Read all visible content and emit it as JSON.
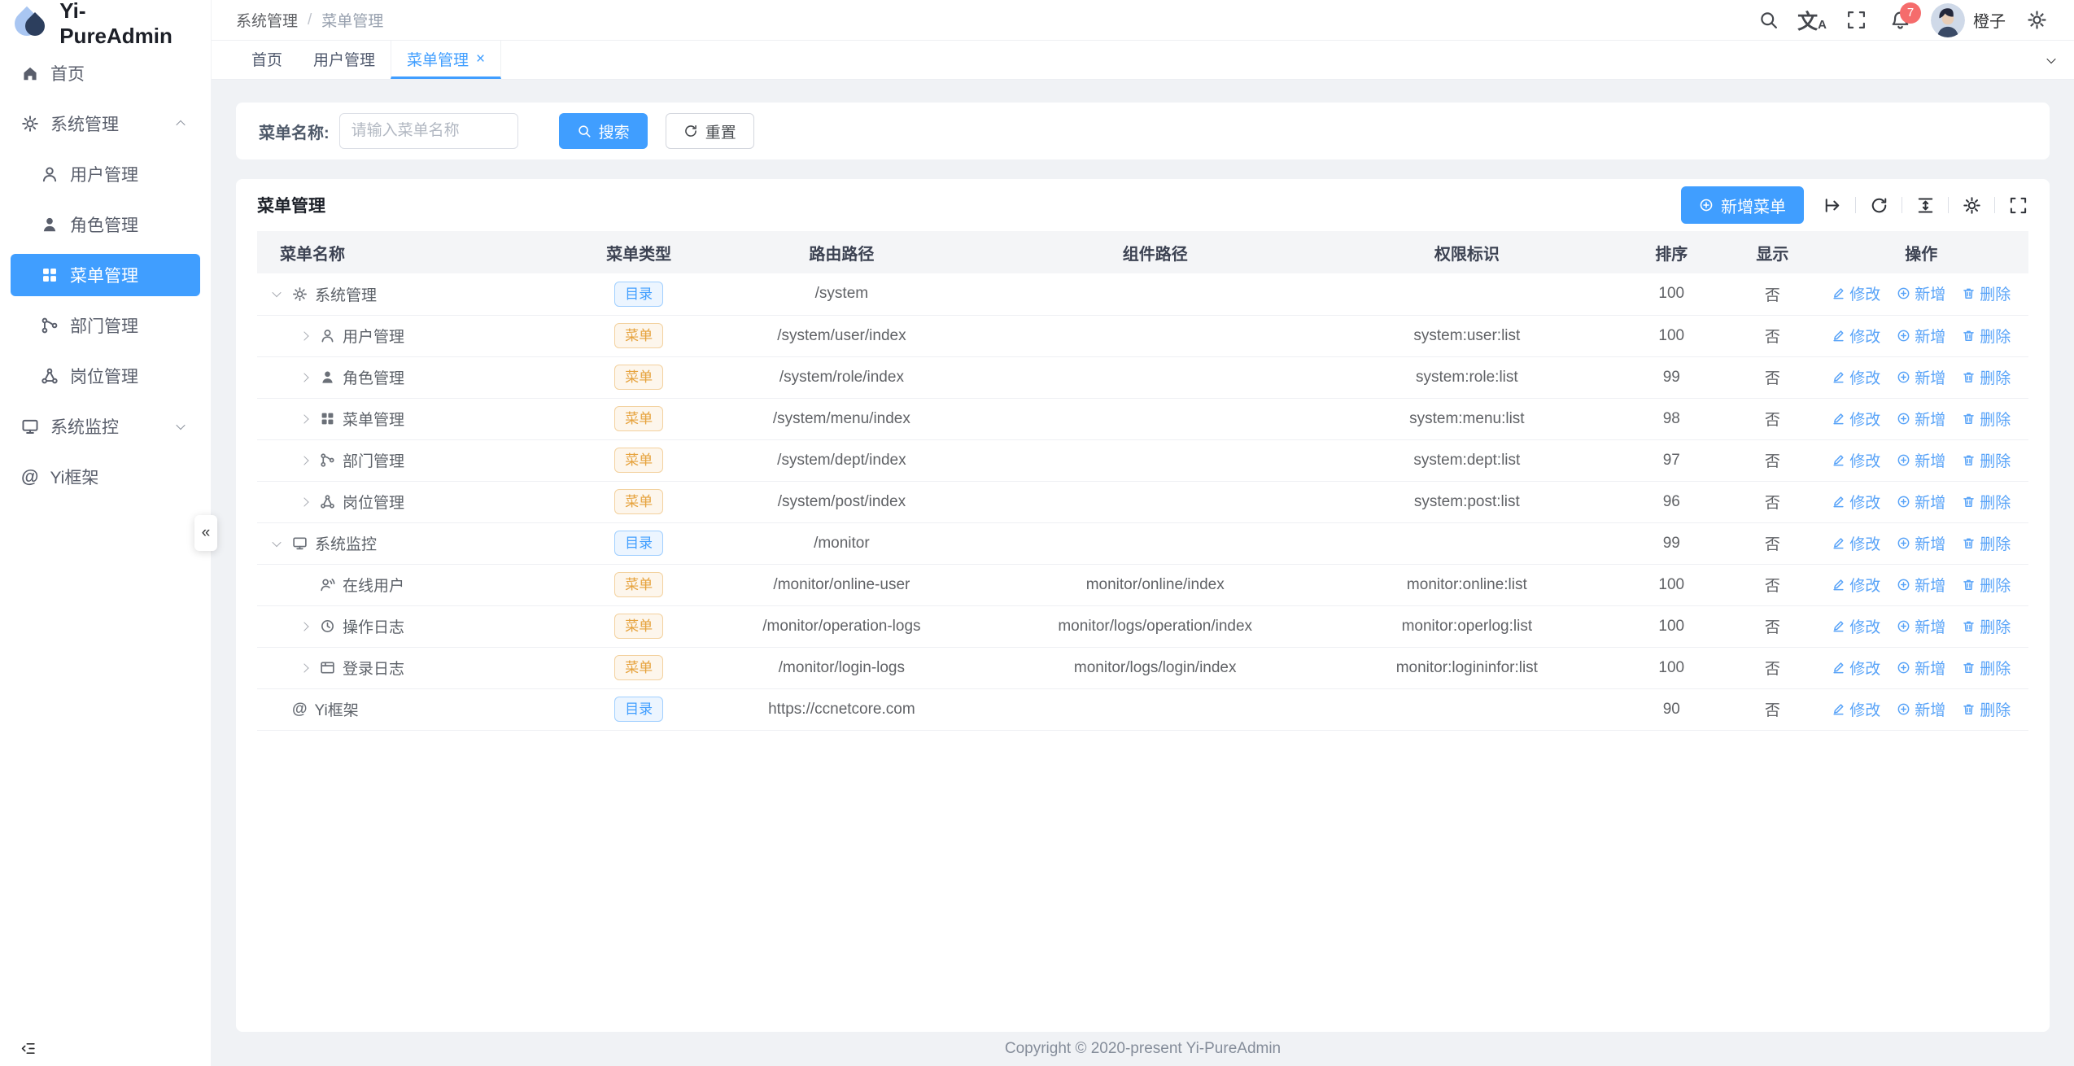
{
  "app": {
    "name": "Yi-PureAdmin"
  },
  "header": {
    "breadcrumb": [
      "系统管理",
      "菜单管理"
    ],
    "separator": "/",
    "user_name": "橙子",
    "badge_count": "7",
    "icons": [
      "search-icon",
      "translate-icon",
      "fullscreen-icon",
      "bell-icon",
      "gear-icon"
    ]
  },
  "tabs": [
    {
      "key": "home",
      "label": "首页",
      "active": false,
      "closable": false
    },
    {
      "key": "user-management",
      "label": "用户管理",
      "active": false,
      "closable": false
    },
    {
      "key": "menu-management",
      "label": "菜单管理",
      "active": true,
      "closable": true
    }
  ],
  "sidebar": {
    "items": [
      {
        "key": "home",
        "label": "首页",
        "icon": "home-icon",
        "level": 0,
        "chevron": null,
        "active": false
      },
      {
        "key": "system",
        "label": "系统管理",
        "icon": "gear-icon",
        "level": 0,
        "chevron": "up",
        "active": false
      },
      {
        "key": "user",
        "label": "用户管理",
        "icon": "user-icon",
        "level": 1,
        "chevron": null,
        "active": false
      },
      {
        "key": "role",
        "label": "角色管理",
        "icon": "role-icon",
        "level": 1,
        "chevron": null,
        "active": false
      },
      {
        "key": "menu",
        "label": "菜单管理",
        "icon": "grid-icon",
        "level": 1,
        "chevron": null,
        "active": true
      },
      {
        "key": "dept",
        "label": "部门管理",
        "icon": "tree-icon",
        "level": 1,
        "chevron": null,
        "active": false
      },
      {
        "key": "post",
        "label": "岗位管理",
        "icon": "share-icon",
        "level": 1,
        "chevron": null,
        "active": false
      },
      {
        "key": "monitor",
        "label": "系统监控",
        "icon": "monitor-icon",
        "level": 0,
        "chevron": "down",
        "active": false
      },
      {
        "key": "yi-frame",
        "label": "Yi框架",
        "icon": "at-icon",
        "level": 0,
        "chevron": null,
        "active": false
      }
    ],
    "collapse_glyph": "«"
  },
  "search": {
    "label": "菜单名称:",
    "placeholder": "请输入菜单名称",
    "search_label": "搜索",
    "reset_label": "重置"
  },
  "table_card": {
    "title": "菜单管理",
    "add_button": "新增菜单",
    "toolbar_icons": [
      "export-icon",
      "refresh-icon",
      "density-icon",
      "gear-icon",
      "fullscreen-icon"
    ],
    "columns": [
      "菜单名称",
      "菜单类型",
      "路由路径",
      "组件路径",
      "权限标识",
      "排序",
      "显示",
      "操作"
    ],
    "actions": [
      {
        "key": "edit",
        "label": "修改",
        "icon": "edit-icon"
      },
      {
        "key": "add",
        "label": "新增",
        "icon": "plus-circle-icon"
      },
      {
        "key": "delete",
        "label": "删除",
        "icon": "trash-icon"
      }
    ],
    "rows": [
      {
        "key": "system",
        "name": "系统管理",
        "icon": "gear-icon",
        "arrow": "down",
        "level": 0,
        "type": "目录",
        "route": "/system",
        "component": "",
        "perms": "",
        "sort": "100",
        "visible": "否"
      },
      {
        "key": "user",
        "name": "用户管理",
        "icon": "user-icon",
        "arrow": "right",
        "level": 1,
        "type": "菜单",
        "route": "/system/user/index",
        "component": "",
        "perms": "system:user:list",
        "sort": "100",
        "visible": "否"
      },
      {
        "key": "role",
        "name": "角色管理",
        "icon": "role-icon",
        "arrow": "right",
        "level": 1,
        "type": "菜单",
        "route": "/system/role/index",
        "component": "",
        "perms": "system:role:list",
        "sort": "99",
        "visible": "否"
      },
      {
        "key": "menu",
        "name": "菜单管理",
        "icon": "grid-icon",
        "arrow": "right",
        "level": 1,
        "type": "菜单",
        "route": "/system/menu/index",
        "component": "",
        "perms": "system:menu:list",
        "sort": "98",
        "visible": "否"
      },
      {
        "key": "dept",
        "name": "部门管理",
        "icon": "tree-icon",
        "arrow": "right",
        "level": 1,
        "type": "菜单",
        "route": "/system/dept/index",
        "component": "",
        "perms": "system:dept:list",
        "sort": "97",
        "visible": "否"
      },
      {
        "key": "post",
        "name": "岗位管理",
        "icon": "share-icon",
        "arrow": "right",
        "level": 1,
        "type": "菜单",
        "route": "/system/post/index",
        "component": "",
        "perms": "system:post:list",
        "sort": "96",
        "visible": "否"
      },
      {
        "key": "monitor",
        "name": "系统监控",
        "icon": "monitor-icon",
        "arrow": "down",
        "level": 0,
        "type": "目录",
        "route": "/monitor",
        "component": "",
        "perms": "",
        "sort": "99",
        "visible": "否"
      },
      {
        "key": "online-user",
        "name": "在线用户",
        "icon": "online-user-icon",
        "arrow": "none",
        "level": 1,
        "type": "菜单",
        "route": "/monitor/online-user",
        "component": "monitor/online/index",
        "perms": "monitor:online:list",
        "sort": "100",
        "visible": "否"
      },
      {
        "key": "operation-log",
        "name": "操作日志",
        "icon": "clock-icon",
        "arrow": "right",
        "level": 1,
        "type": "菜单",
        "route": "/monitor/operation-logs",
        "component": "monitor/logs/operation/index",
        "perms": "monitor:operlog:list",
        "sort": "100",
        "visible": "否"
      },
      {
        "key": "login-log",
        "name": "登录日志",
        "icon": "window-icon",
        "arrow": "right",
        "level": 1,
        "type": "菜单",
        "route": "/monitor/login-logs",
        "component": "monitor/logs/login/index",
        "perms": "monitor:logininfor:list",
        "sort": "100",
        "visible": "否"
      },
      {
        "key": "yi-frame",
        "name": "Yi框架",
        "icon": "at-icon",
        "arrow": "none",
        "level": 0,
        "type": "目录",
        "route": "https://ccnetcore.com",
        "component": "",
        "perms": "",
        "sort": "90",
        "visible": "否"
      }
    ]
  },
  "footer": {
    "copyright": "Copyright © 2020-present Yi-PureAdmin"
  },
  "colors": {
    "primary": "#409eff",
    "link": "#58a3f8",
    "badge": "#f56c6c",
    "tag_dir": "#409eff",
    "tag_menu": "#e6a23c"
  }
}
